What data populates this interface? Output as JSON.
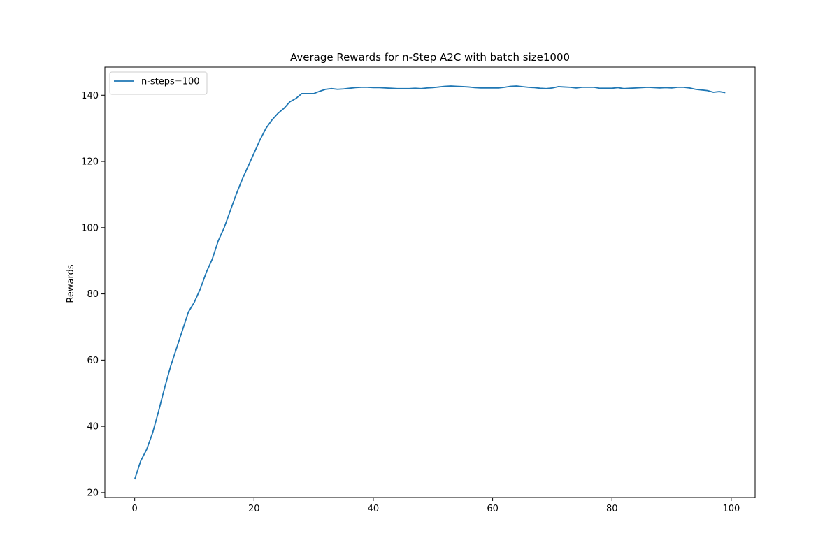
{
  "chart_data": {
    "type": "line",
    "title": "Average Rewards for n-Step A2C with batch size1000",
    "xlabel": "",
    "ylabel": "Rewards",
    "xlim": [
      -5,
      104
    ],
    "ylim": [
      18.5,
      148.5
    ],
    "xticks": [
      0,
      20,
      40,
      60,
      80,
      100
    ],
    "yticks": [
      20,
      40,
      60,
      80,
      100,
      120,
      140
    ],
    "grid": false,
    "legend_position": "upper-left",
    "series": [
      {
        "name": "n-steps=100",
        "color": "#1f77b4",
        "x": [
          0,
          1,
          2,
          3,
          4,
          5,
          6,
          7,
          8,
          9,
          10,
          11,
          12,
          13,
          14,
          15,
          16,
          17,
          18,
          19,
          20,
          21,
          22,
          23,
          24,
          25,
          26,
          27,
          28,
          29,
          30,
          31,
          32,
          33,
          34,
          35,
          36,
          37,
          38,
          39,
          40,
          41,
          42,
          43,
          44,
          45,
          46,
          47,
          48,
          49,
          50,
          51,
          52,
          53,
          54,
          55,
          56,
          57,
          58,
          59,
          60,
          61,
          62,
          63,
          64,
          65,
          66,
          67,
          68,
          69,
          70,
          71,
          72,
          73,
          74,
          75,
          76,
          77,
          78,
          79,
          80,
          81,
          82,
          83,
          84,
          85,
          86,
          87,
          88,
          89,
          90,
          91,
          92,
          93,
          94,
          95,
          96,
          97,
          98,
          99
        ],
        "y": [
          24,
          29.5,
          33,
          38,
          44.5,
          51.5,
          58,
          63.5,
          69,
          74.5,
          77.5,
          81.5,
          86.5,
          90.5,
          96,
          100,
          105,
          110,
          114.5,
          118.5,
          122.5,
          126.5,
          130,
          132.5,
          134.5,
          136,
          138,
          139,
          140.5,
          140.5,
          140.5,
          141.2,
          141.8,
          142,
          141.8,
          141.9,
          142.1,
          142.3,
          142.4,
          142.4,
          142.3,
          142.3,
          142.2,
          142.1,
          142,
          142,
          142,
          142.1,
          142,
          142.2,
          142.3,
          142.5,
          142.7,
          142.8,
          142.7,
          142.6,
          142.5,
          142.3,
          142.2,
          142.2,
          142.2,
          142.2,
          142.4,
          142.7,
          142.8,
          142.6,
          142.4,
          142.3,
          142.1,
          142,
          142.2,
          142.6,
          142.5,
          142.4,
          142.2,
          142.4,
          142.4,
          142.4,
          142.1,
          142.1,
          142.1,
          142.3,
          142,
          142.1,
          142.2,
          142.3,
          142.4,
          142.3,
          142.2,
          142.3,
          142.2,
          142.4,
          142.4,
          142.2,
          141.8,
          141.6,
          141.4,
          140.9,
          141.1,
          140.8
        ]
      }
    ]
  }
}
